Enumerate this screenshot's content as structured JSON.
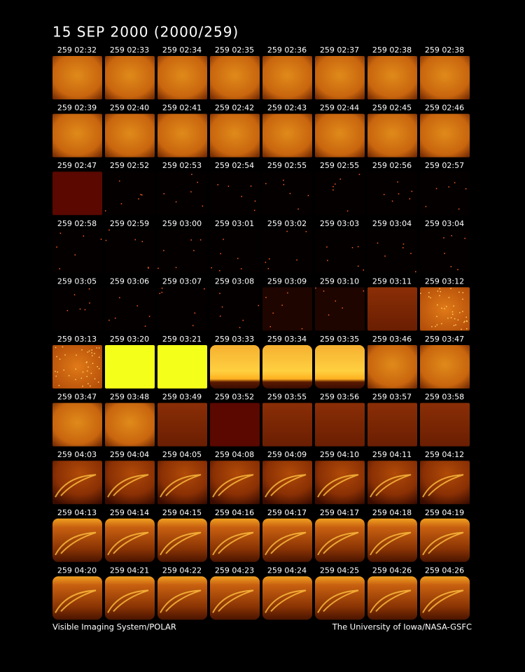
{
  "header": {
    "title": "15 SEP 2000  (2000/259)"
  },
  "frames": [
    [
      "259 02:32",
      "259 02:33",
      "259 02:34",
      "259 02:35",
      "259 02:36",
      "259 02:37",
      "259 02:38",
      "259 02:38"
    ],
    [
      "259 02:39",
      "259 02:40",
      "259 02:41",
      "259 02:42",
      "259 02:43",
      "259 02:44",
      "259 02:45",
      "259 02:46"
    ],
    [
      "259 02:47",
      "259 02:52",
      "259 02:53",
      "259 02:54",
      "259 02:55",
      "259 02:55",
      "259 02:56",
      "259 02:57"
    ],
    [
      "259 02:58",
      "259 02:59",
      "259 03:00",
      "259 03:01",
      "259 03:02",
      "259 03:03",
      "259 03:04",
      "259 03:04"
    ],
    [
      "259 03:05",
      "259 03:06",
      "259 03:07",
      "259 03:08",
      "259 03:09",
      "259 03:10",
      "259 03:11",
      "259 03:12"
    ],
    [
      "259 03:13",
      "259 03:20",
      "259 03:21",
      "259 03:33",
      "259 03:34",
      "259 03:35",
      "259 03:46",
      "259 03:47"
    ],
    [
      "259 03:47",
      "259 03:48",
      "259 03:49",
      "259 03:52",
      "259 03:55",
      "259 03:56",
      "259 03:57",
      "259 03:58"
    ],
    [
      "259 04:03",
      "259 04:04",
      "259 04:05",
      "259 04:08",
      "259 04:09",
      "259 04:10",
      "259 04:11",
      "259 04:12"
    ],
    [
      "259 04:13",
      "259 04:14",
      "259 04:15",
      "259 04:16",
      "259 04:17",
      "259 04:17",
      "259 04:18",
      "259 04:19"
    ],
    [
      "259 04:20",
      "259 04:21",
      "259 04:22",
      "259 04:23",
      "259 04:24",
      "259 04:25",
      "259 04:26",
      "259 04:26"
    ]
  ],
  "footer": {
    "left": "Visible Imaging System/POLAR",
    "right": "The University of Iowa/NASA-GSFC"
  }
}
